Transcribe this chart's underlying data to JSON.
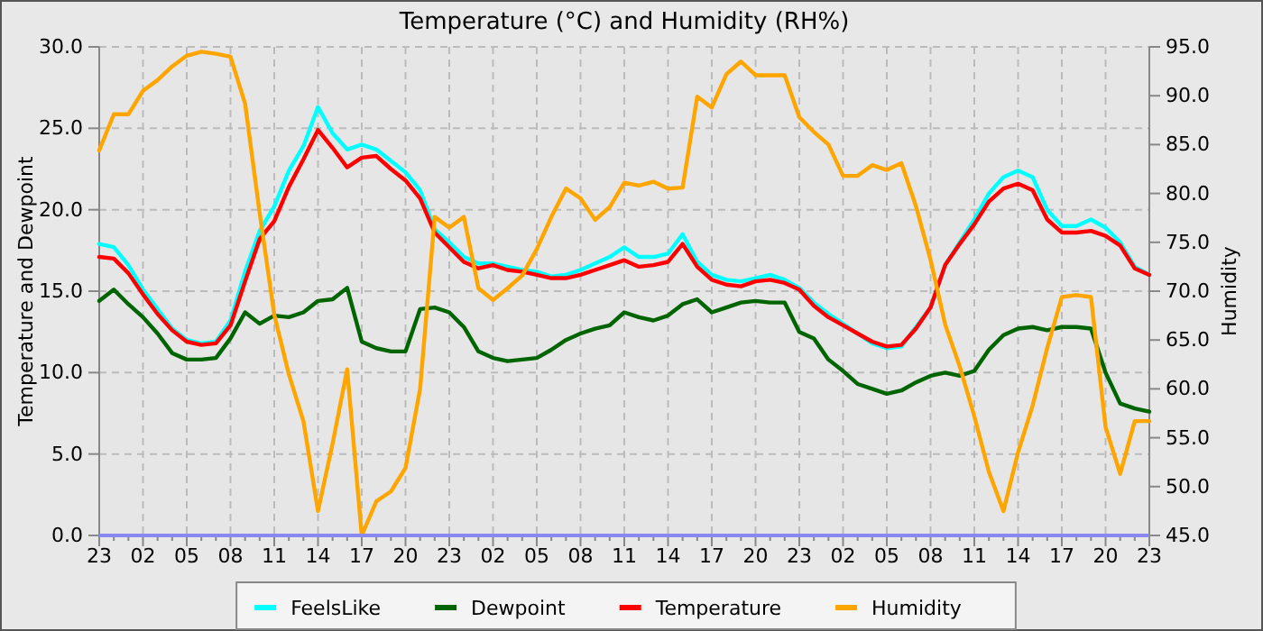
{
  "chart_data": {
    "type": "line",
    "title": "Temperature (°C) and Humidity (RH%)",
    "ylabel": "Temperature and Dewpoint",
    "y2label": "Humidity",
    "categories": [
      "23",
      null,
      null,
      "02",
      null,
      null,
      "05",
      null,
      null,
      "08",
      null,
      null,
      "11",
      null,
      null,
      "14",
      null,
      null,
      "17",
      null,
      null,
      "20",
      null,
      null,
      "23",
      null,
      null,
      "02",
      null,
      null,
      "05",
      null,
      null,
      "08",
      null,
      null,
      "11",
      null,
      null,
      "14",
      null,
      null,
      "17",
      null,
      null,
      "20",
      null,
      null,
      "23",
      null,
      null,
      "02",
      null,
      null,
      "05",
      null,
      null,
      "08",
      null,
      null,
      "11",
      null,
      null,
      "14",
      null,
      null,
      "17",
      null,
      null,
      "20",
      null,
      null,
      "23"
    ],
    "ylim": [
      0,
      30
    ],
    "yticks": [
      {
        "value": 0,
        "label": "0.0"
      },
      {
        "value": 5,
        "label": "5.0"
      },
      {
        "value": 10,
        "label": "10.0"
      },
      {
        "value": 15,
        "label": "15.0"
      },
      {
        "value": 20,
        "label": "20.0"
      },
      {
        "value": 25,
        "label": "25.0"
      },
      {
        "value": 30,
        "label": "30.0"
      }
    ],
    "y2lim": [
      45,
      95
    ],
    "y2ticks": [
      {
        "value": 45,
        "label": "45.0"
      },
      {
        "value": 50,
        "label": "50.0"
      },
      {
        "value": 55,
        "label": "55.0"
      },
      {
        "value": 60,
        "label": "60.0"
      },
      {
        "value": 65,
        "label": "65.0"
      },
      {
        "value": 70,
        "label": "70.0"
      },
      {
        "value": 75,
        "label": "75.0"
      },
      {
        "value": 80,
        "label": "80.0"
      },
      {
        "value": 85,
        "label": "85.0"
      },
      {
        "value": 90,
        "label": "90.0"
      },
      {
        "value": 95,
        "label": "95.0"
      }
    ],
    "grid": true,
    "legend": "bottom",
    "marker": "none",
    "line_style": "solid",
    "series": [
      {
        "name": "FeelsLike",
        "color": "#00ffff",
        "values": [
          17.9,
          17.7,
          16.6,
          15.1,
          13.9,
          12.7,
          12.0,
          11.8,
          11.9,
          13.2,
          16.2,
          18.7,
          20.2,
          22.4,
          23.9,
          26.3,
          24.7,
          23.7,
          24.0,
          23.7,
          23.0,
          22.3,
          21.2,
          18.8,
          18.0,
          17.1,
          16.7,
          16.7,
          16.5,
          16.3,
          16.2,
          15.9,
          16.0,
          16.3,
          16.7,
          17.1,
          17.7,
          17.1,
          17.1,
          17.3,
          18.5,
          16.8,
          16.0,
          15.7,
          15.6,
          15.8,
          16.0,
          15.7,
          15.2,
          14.3,
          13.6,
          13.0,
          12.4,
          11.8,
          11.5,
          11.6,
          12.8,
          14.0,
          16.6,
          18.0,
          19.4,
          21.0,
          22.0,
          22.4,
          22.0,
          20.0,
          19.0,
          19.0,
          19.4,
          18.9,
          18.0,
          16.5,
          16.0
        ]
      },
      {
        "name": "Dewpoint",
        "color": "#006400",
        "values": [
          14.4,
          15.1,
          14.2,
          13.4,
          12.4,
          11.2,
          10.8,
          10.8,
          10.9,
          12.1,
          13.7,
          13.0,
          13.5,
          13.4,
          13.7,
          14.4,
          14.5,
          15.2,
          11.9,
          11.5,
          11.3,
          11.3,
          13.9,
          14.0,
          13.7,
          12.8,
          11.3,
          10.9,
          10.7,
          10.8,
          10.9,
          11.4,
          12.0,
          12.4,
          12.7,
          12.9,
          13.7,
          13.4,
          13.2,
          13.5,
          14.2,
          14.5,
          13.7,
          14.0,
          14.3,
          14.4,
          14.3,
          14.3,
          12.5,
          12.1,
          10.8,
          10.1,
          9.3,
          9.0,
          8.7,
          8.9,
          9.4,
          9.8,
          10.0,
          9.8,
          10.1,
          11.4,
          12.3,
          12.7,
          12.8,
          12.6,
          12.8,
          12.8,
          12.7,
          10.0,
          8.1,
          7.8,
          7.6
        ]
      },
      {
        "name": "Temperature",
        "color": "#ff0000",
        "values": [
          17.1,
          17.0,
          16.1,
          14.8,
          13.6,
          12.6,
          11.9,
          11.7,
          11.8,
          12.9,
          15.6,
          18.2,
          19.3,
          21.4,
          23.1,
          24.9,
          23.8,
          22.6,
          23.2,
          23.3,
          22.5,
          21.8,
          20.7,
          18.6,
          17.7,
          16.8,
          16.4,
          16.6,
          16.3,
          16.2,
          16.0,
          15.8,
          15.8,
          16.0,
          16.3,
          16.6,
          16.9,
          16.5,
          16.6,
          16.8,
          17.9,
          16.5,
          15.7,
          15.4,
          15.3,
          15.6,
          15.7,
          15.5,
          15.1,
          14.1,
          13.4,
          12.9,
          12.4,
          11.9,
          11.6,
          11.7,
          12.7,
          14.0,
          16.6,
          17.9,
          19.1,
          20.5,
          21.3,
          21.6,
          21.2,
          19.4,
          18.6,
          18.6,
          18.7,
          18.4,
          17.8,
          16.4,
          16.0
        ]
      },
      {
        "name": "Humidity",
        "color": "#ffa500",
        "axis": "y2",
        "values": [
          84.4,
          88.1,
          88.1,
          90.5,
          91.6,
          93.0,
          94.1,
          94.5,
          94.3,
          94.0,
          89.2,
          78.0,
          67.6,
          61.5,
          56.7,
          47.5,
          54.4,
          62.0,
          45.0,
          48.5,
          49.5,
          51.9,
          60.0,
          77.6,
          76.5,
          77.6,
          70.3,
          69.1,
          70.3,
          71.6,
          74.3,
          77.6,
          80.5,
          79.5,
          77.3,
          78.6,
          81.1,
          80.8,
          81.2,
          80.5,
          80.6,
          89.9,
          88.8,
          92.2,
          93.5,
          92.1,
          92.1,
          92.1,
          87.8,
          86.3,
          85.0,
          81.8,
          81.8,
          82.9,
          82.4,
          83.1,
          78.7,
          73.2,
          66.6,
          62.3,
          57.2,
          51.5,
          47.5,
          53.5,
          58.3,
          64.2,
          69.4,
          69.6,
          69.4,
          56.1,
          51.3,
          56.7,
          56.7
        ]
      }
    ]
  }
}
